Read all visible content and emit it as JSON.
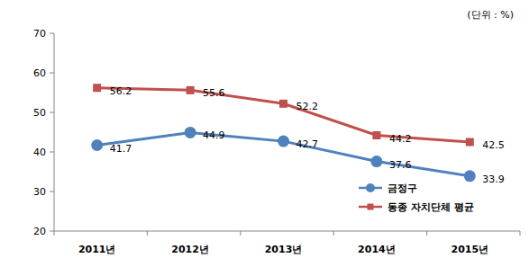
{
  "chart_data": {
    "type": "line",
    "annotations": [
      "(단위 : %)"
    ],
    "categories": [
      "2011년",
      "2012년",
      "2013년",
      "2014년",
      "2015년"
    ],
    "series": [
      {
        "name": "금정구",
        "color": "#4f81bd",
        "marker": "circle",
        "values": [
          41.7,
          44.9,
          42.7,
          37.6,
          33.9
        ]
      },
      {
        "name": "동종 자치단체 평균",
        "color": "#c0504d",
        "marker": "square",
        "values": [
          56.2,
          55.6,
          52.2,
          44.2,
          42.5
        ]
      }
    ],
    "ylim": [
      20,
      70
    ],
    "yticks": [
      20,
      30,
      40,
      50,
      60,
      70
    ],
    "grid": false,
    "data_labels": true,
    "legend": "bottom-right"
  }
}
